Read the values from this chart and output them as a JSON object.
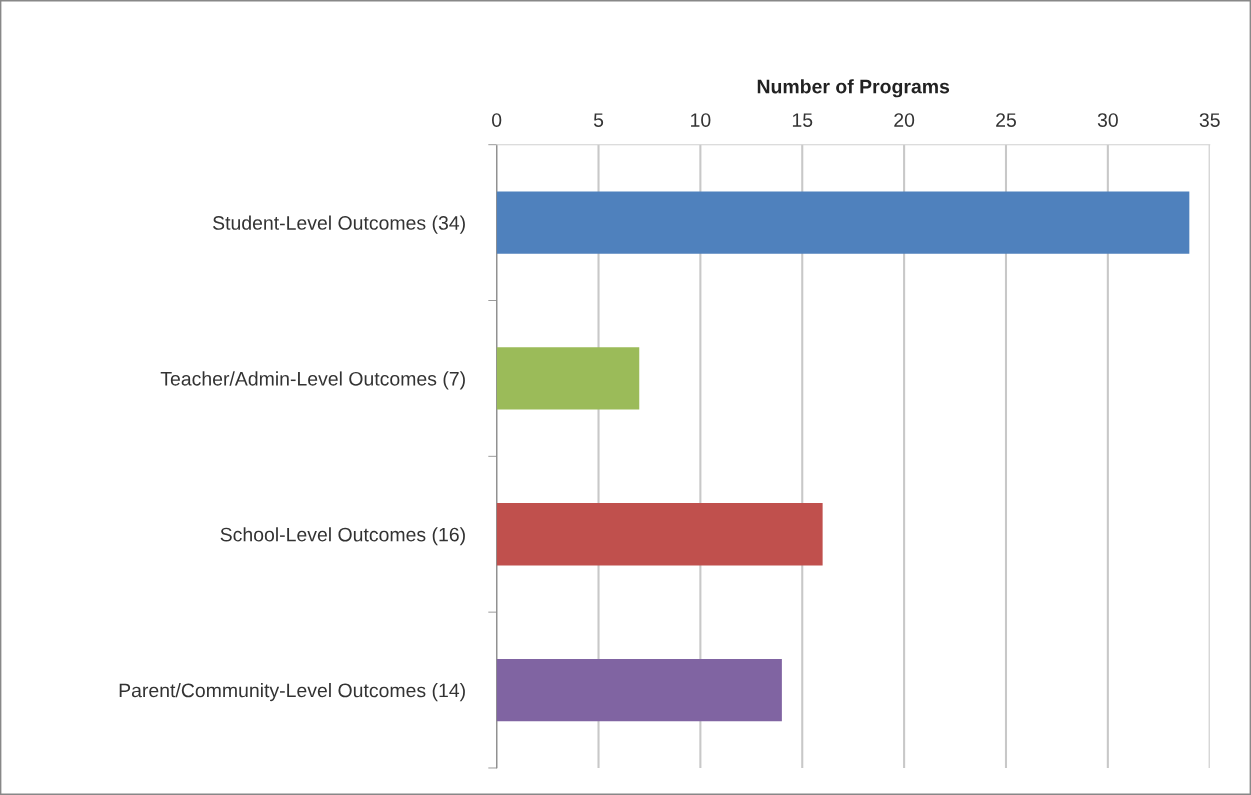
{
  "chart_data": {
    "type": "bar",
    "orientation": "horizontal",
    "xlabel": "Number of Programs",
    "categories": [
      "Student-Level Outcomes (34)",
      "Teacher/Admin-Level Outcomes (7)",
      "School-Level Outcomes (16)",
      "Parent/Community-Level Outcomes (14)"
    ],
    "values": [
      34,
      7,
      16,
      14
    ],
    "colors": [
      "#4f81bd",
      "#9bbb59",
      "#c0504d",
      "#8064a2"
    ],
    "xlim": [
      0,
      35
    ],
    "xticks": [
      0,
      5,
      10,
      15,
      20,
      25,
      30,
      35
    ],
    "grid": "x"
  }
}
